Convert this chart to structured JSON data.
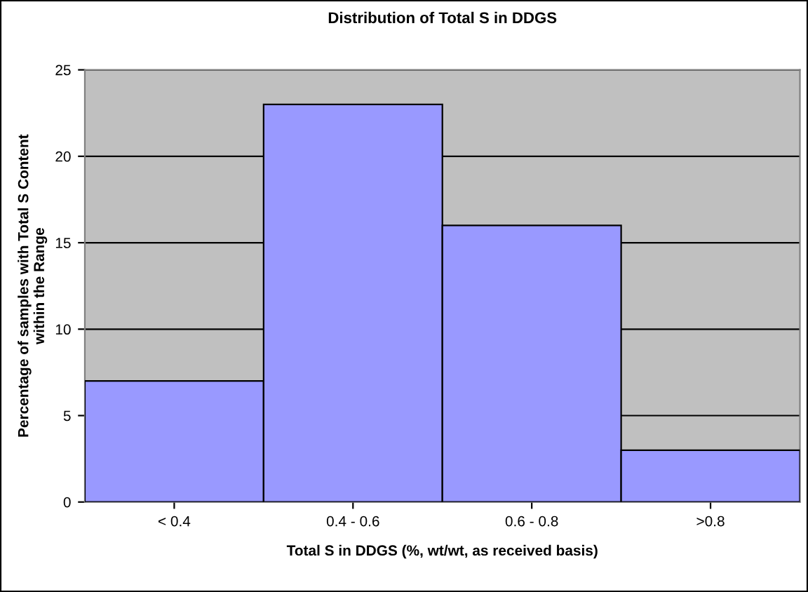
{
  "chart_data": {
    "type": "bar",
    "title": "Distribution of Total S in DDGS",
    "xlabel": "Total S in DDGS (%, wt/wt, as received basis)",
    "ylabel": "Percentage of samples with Total S Content\nwithin the Range",
    "categories": [
      "< 0.4",
      "0.4 - 0.6",
      "0.6 - 0.8",
      ">0.8"
    ],
    "values": [
      7,
      23,
      16,
      3
    ],
    "color": "#9999ff",
    "ylim": [
      0,
      25
    ],
    "yticks": [
      0,
      5,
      10,
      15,
      20,
      25
    ],
    "grid": "y"
  }
}
